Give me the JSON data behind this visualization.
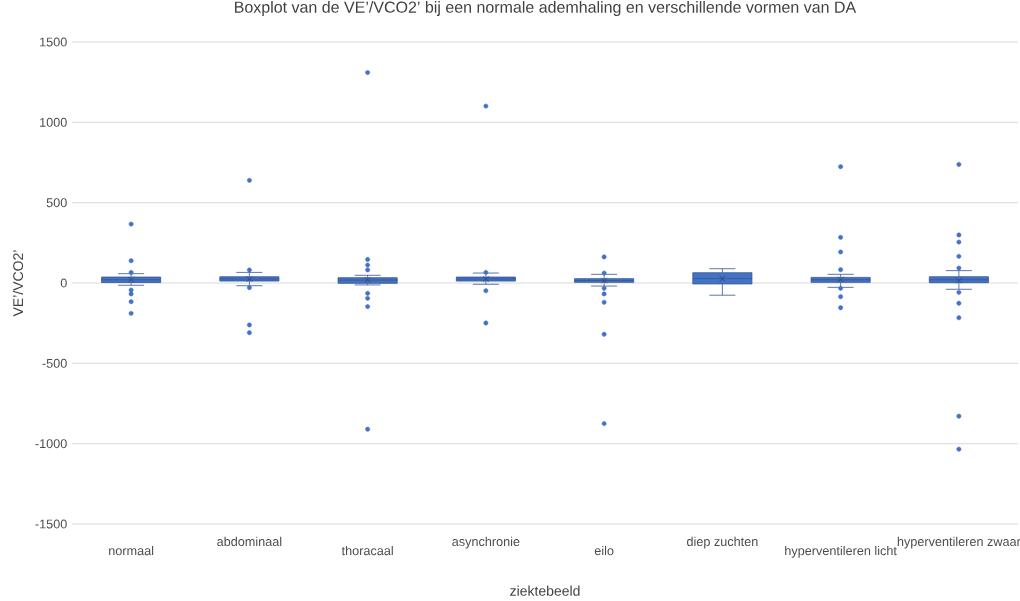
{
  "chart_data": {
    "type": "box",
    "title": "Boxplot van de VE’/VCO2’ bij een normale ademhaling en verschillende vormen van DA",
    "xlabel": "ziektebeeld",
    "ylabel": "VE’/VCO2’",
    "categories": [
      "normaal",
      "abdominaal",
      "thoracaal",
      "asynchronie",
      "eilo",
      "diep zuchten",
      "hyperventileren licht",
      "hyperventileren zwaar"
    ],
    "boxes": [
      {
        "low": -14,
        "q1": 3,
        "median": 20,
        "q3": 37,
        "high": 58,
        "mean": 21,
        "outliers": [
          367,
          139,
          66,
          -44,
          -68,
          -116,
          -189
        ]
      },
      {
        "low": -17,
        "q1": 12,
        "median": 25,
        "q3": 39,
        "high": 66,
        "mean": 25,
        "outliers": [
          639,
          81,
          -29,
          -261,
          -309
        ]
      },
      {
        "low": -12,
        "q1": -2,
        "median": 18,
        "q3": 33,
        "high": 48,
        "mean": 20,
        "outliers": [
          1310,
          147,
          112,
          81,
          -64,
          -95,
          -147,
          -910
        ]
      },
      {
        "low": -8,
        "q1": 12,
        "median": 25,
        "q3": 37,
        "high": 62,
        "mean": 25,
        "outliers": [
          1101,
          66,
          -48,
          -249
        ]
      },
      {
        "low": -19,
        "q1": 4,
        "median": 15,
        "q3": 27,
        "high": 54,
        "mean": 15,
        "outliers": [
          162,
          62,
          -33,
          -68,
          -120,
          -319,
          -875
        ]
      },
      {
        "low": -76,
        "q1": -6,
        "median": 27,
        "q3": 64,
        "high": 89,
        "mean": 27
      },
      {
        "low": -27,
        "q1": 4,
        "median": 20,
        "q3": 35,
        "high": 54,
        "mean": 22,
        "outliers": [
          724,
          284,
          193,
          83,
          -33,
          -85,
          -154
        ]
      },
      {
        "low": -39,
        "q1": 2,
        "median": 20,
        "q3": 39,
        "high": 77,
        "mean": 15,
        "outliers": [
          738,
          299,
          255,
          166,
          93,
          -58,
          -126,
          -216,
          -829,
          -1034
        ]
      }
    ],
    "color": "#4472c4",
    "ylim": [
      -1500,
      1500
    ],
    "yticks": [
      -1500,
      -1000,
      -500,
      0,
      500,
      1000,
      1500
    ],
    "grid": "y"
  }
}
